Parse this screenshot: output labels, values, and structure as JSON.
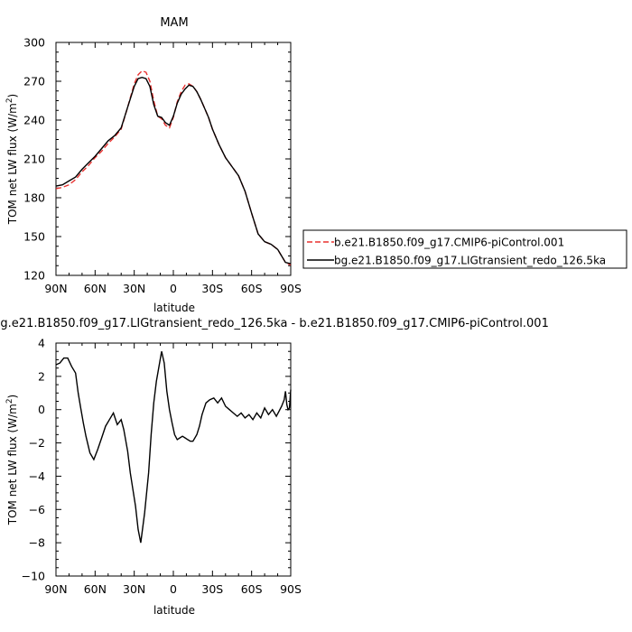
{
  "chart_data": [
    {
      "type": "line",
      "title": "MAM",
      "xlabel": "latitude",
      "ylabel": "TOM net LW flux (W/m",
      "ylabel_sup": "2",
      "ylabel_end": ")",
      "xlim": [
        90,
        -90
      ],
      "ylim": [
        120,
        300
      ],
      "xticks": [
        90,
        60,
        30,
        0,
        -30,
        -60,
        -90
      ],
      "xtick_labels": [
        "90N",
        "60N",
        "30N",
        "0",
        "30S",
        "60S",
        "90S"
      ],
      "yticks": [
        120,
        150,
        180,
        210,
        240,
        270,
        300
      ],
      "legend_position": "right",
      "series": [
        {
          "name": "b.e21.B1850.f09_g17.CMIP6-piControl.001",
          "color": "#e8312f",
          "dash": "dashed",
          "x": [
            90,
            85,
            80,
            75,
            70,
            65,
            60,
            55,
            50,
            45,
            40,
            35,
            30,
            27,
            24,
            21,
            18,
            15,
            12,
            9,
            6,
            3,
            0,
            -3,
            -6,
            -9,
            -12,
            -15,
            -18,
            -21,
            -24,
            -27,
            -30,
            -35,
            -40,
            -45,
            -50,
            -55,
            -60,
            -65,
            -70,
            -75,
            -80,
            -83,
            -86,
            -90
          ],
          "y": [
            187,
            188,
            190,
            194,
            200,
            205,
            211,
            216,
            222,
            227,
            233,
            250,
            268,
            275,
            278,
            277,
            270,
            255,
            243,
            241,
            236,
            234,
            242,
            254,
            262,
            267,
            268,
            266,
            262,
            256,
            249,
            242,
            233,
            221,
            211,
            204,
            197,
            185,
            168,
            152,
            146,
            144,
            140,
            135,
            130,
            128
          ]
        },
        {
          "name": "bg.e21.B1850.f09_g17.LIGtransient_redo_126.5ka",
          "color": "#000000",
          "dash": "solid",
          "x": [
            90,
            85,
            80,
            75,
            70,
            65,
            60,
            55,
            50,
            45,
            40,
            35,
            30,
            27,
            24,
            21,
            18,
            15,
            12,
            9,
            6,
            3,
            0,
            -3,
            -6,
            -9,
            -12,
            -15,
            -18,
            -21,
            -24,
            -27,
            -30,
            -35,
            -40,
            -45,
            -50,
            -55,
            -60,
            -65,
            -70,
            -75,
            -80,
            -83,
            -86,
            -90
          ],
          "y": [
            189,
            190,
            193,
            196,
            202,
            207,
            212,
            218,
            224,
            228,
            234,
            250,
            266,
            272,
            273,
            272,
            266,
            252,
            243,
            242,
            238,
            236,
            243,
            253,
            260,
            264,
            267,
            266,
            262,
            256,
            249,
            242,
            233,
            221,
            211,
            204,
            197,
            185,
            168,
            152,
            146,
            144,
            140,
            135,
            130,
            129
          ]
        }
      ]
    },
    {
      "type": "line",
      "title": "bg.e21.B1850.f09_g17.LIGtransient_redo_126.5ka - b.e21.B1850.f09_g17.CMIP6-piControl.001",
      "xlabel": "latitude",
      "ylabel": "TOM net LW flux (W/m",
      "ylabel_sup": "2",
      "ylabel_end": ")",
      "xlim": [
        90,
        -90
      ],
      "ylim": [
        -10,
        4
      ],
      "xticks": [
        90,
        60,
        30,
        0,
        -30,
        -60,
        -90
      ],
      "xtick_labels": [
        "90N",
        "60N",
        "30N",
        "0",
        "30S",
        "60S",
        "90S"
      ],
      "yticks": [
        -10,
        -8,
        -6,
        -4,
        -2,
        0,
        2,
        4
      ],
      "series": [
        {
          "color": "#000000",
          "dash": "solid",
          "x": [
            90,
            87,
            84,
            81,
            78,
            75,
            73,
            71,
            69,
            67,
            64,
            61,
            58,
            55,
            52,
            49,
            46,
            43,
            40,
            38,
            35,
            33,
            31,
            29,
            27,
            25,
            22,
            19,
            17,
            15,
            13,
            11,
            9,
            7,
            5,
            3,
            1,
            -1,
            -3,
            -5,
            -7,
            -9,
            -11,
            -13,
            -15,
            -18,
            -20,
            -22,
            -25,
            -28,
            -31,
            -34,
            -37,
            -40,
            -43,
            -46,
            -49,
            -52,
            -55,
            -58,
            -61,
            -64,
            -67,
            -70,
            -73,
            -76,
            -79,
            -81,
            -83,
            -85,
            -86,
            -87,
            -88,
            -89,
            -90
          ],
          "y": [
            2.7,
            2.8,
            3.1,
            3.1,
            2.6,
            2.2,
            1.0,
            0.1,
            -0.8,
            -1.6,
            -2.6,
            -3.0,
            -2.4,
            -1.7,
            -1.0,
            -0.6,
            -0.2,
            -0.9,
            -0.6,
            -1.2,
            -2.5,
            -3.8,
            -4.8,
            -5.8,
            -7.2,
            -8.0,
            -6.2,
            -3.8,
            -1.5,
            0.4,
            1.7,
            2.6,
            3.5,
            2.8,
            1.1,
            0.0,
            -0.8,
            -1.5,
            -1.8,
            -1.7,
            -1.6,
            -1.7,
            -1.8,
            -1.9,
            -1.9,
            -1.5,
            -1.0,
            -0.3,
            0.4,
            0.6,
            0.7,
            0.4,
            0.7,
            0.2,
            0.0,
            -0.2,
            -0.4,
            -0.2,
            -0.5,
            -0.3,
            -0.6,
            -0.2,
            -0.5,
            0.1,
            -0.3,
            0.0,
            -0.4,
            -0.1,
            0.2,
            0.6,
            1.1,
            0.3,
            0.0,
            0.1,
            1.2
          ]
        }
      ]
    }
  ]
}
